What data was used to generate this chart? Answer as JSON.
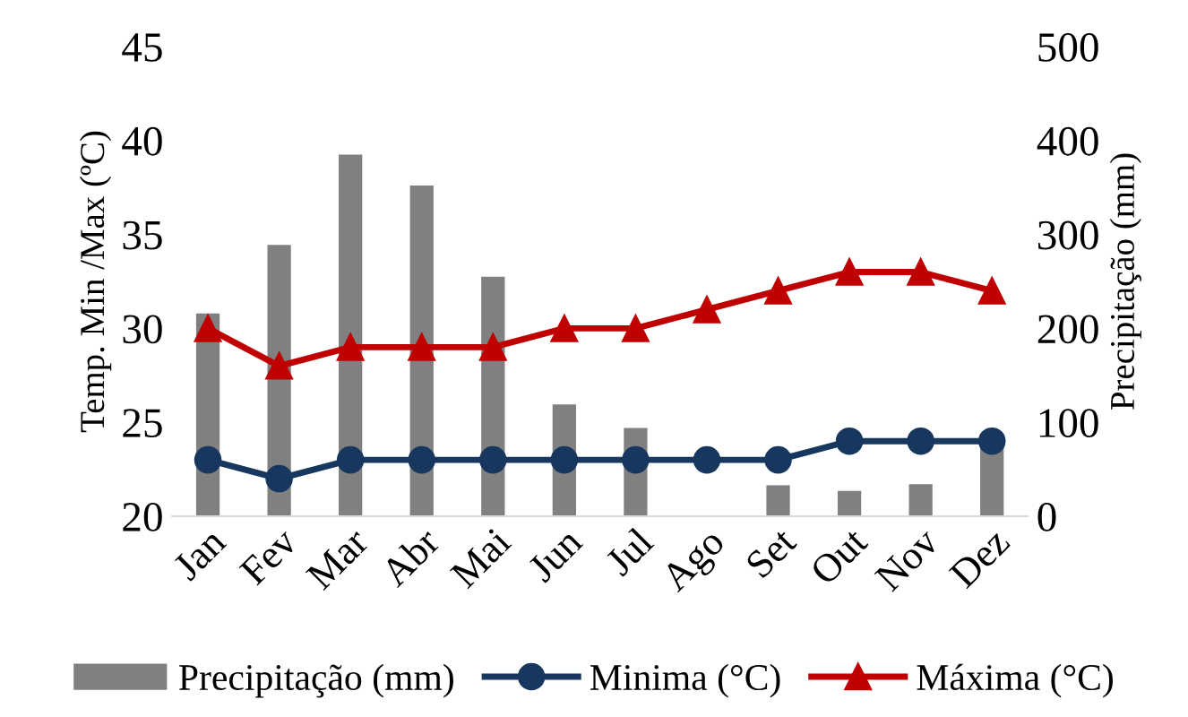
{
  "chart_data": {
    "type": "bar",
    "categories": [
      "Jan",
      "Fev",
      "Mar",
      "Abr",
      "Mai",
      "Jun",
      "Jul",
      "Ago",
      "Set",
      "Out",
      "Nov",
      "Dez"
    ],
    "ylabel": "Temp. Min /Max (ºC)",
    "y2label": "Precipitação (mm)",
    "ylim": [
      20,
      45
    ],
    "yticks": [
      20,
      25,
      30,
      35,
      40,
      45
    ],
    "y2lim": [
      0,
      500
    ],
    "y2ticks": [
      0,
      100,
      200,
      300,
      400,
      500
    ],
    "legend": "bottom",
    "grid": false,
    "series": [
      {
        "name": "Precipitação (mm)",
        "axis": "y2",
        "color": "#808080",
        "values": [
          216,
          289,
          385,
          352,
          255,
          119,
          94,
          null,
          33,
          27,
          34,
          73
        ]
      },
      {
        "name": "Minima (°C)",
        "type": "line",
        "color": "#17375e",
        "marker": "circle",
        "values": [
          23,
          22,
          23,
          23,
          23,
          23,
          23,
          23,
          23,
          24,
          24,
          24
        ]
      },
      {
        "name": "Máxima (°C)",
        "type": "line",
        "color": "#c00000",
        "marker": "triangle",
        "values": [
          30,
          28,
          29,
          29,
          29,
          30,
          30,
          31,
          32,
          33,
          33,
          32
        ]
      }
    ]
  }
}
